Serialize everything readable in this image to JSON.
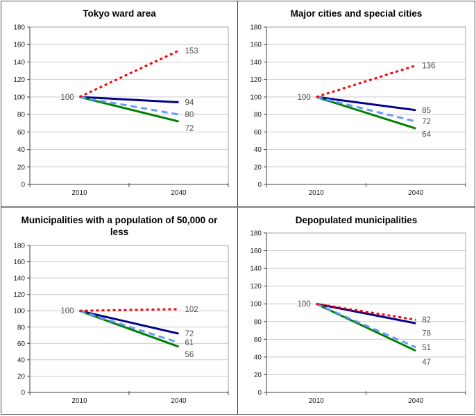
{
  "board_name": "population-index-charts",
  "axis": {
    "ylim": [
      0,
      180
    ],
    "ytick_step": 20,
    "x_categories": [
      "2010",
      "2040"
    ]
  },
  "colors": {
    "red_dashed": "#FF0000",
    "navy_solid": "#000090",
    "blue_dashed": "#6699FF",
    "green_solid": "#008000",
    "gridline": "#CBCBCB",
    "plot_border": "#A3A3A3",
    "axis_line": "#404040",
    "tick_label": "#1a1a1a",
    "data_label": "#4f4f4f"
  },
  "chart_data": [
    {
      "type": "line",
      "title": "Tokyo ward area",
      "x": [
        "2010",
        "2040"
      ],
      "ylim": [
        0,
        180
      ],
      "ytick_step": 20,
      "grid": true,
      "legend": "none",
      "start_label": "100",
      "series": [
        {
          "name": "red-short-dashed",
          "color": "#FF0000",
          "line_style": "short-dash",
          "values": [
            100,
            153
          ],
          "end_label": "153"
        },
        {
          "name": "navy-solid",
          "color": "#000090",
          "line_style": "solid",
          "values": [
            100,
            94
          ],
          "end_label": "94"
        },
        {
          "name": "light-blue-dashed",
          "color": "#6699FF",
          "line_style": "long-dash",
          "values": [
            100,
            80
          ],
          "end_label": "80"
        },
        {
          "name": "green-solid",
          "color": "#008000",
          "line_style": "solid",
          "values": [
            100,
            72
          ],
          "end_label": "72"
        }
      ],
      "label_dy": [
        0,
        0,
        0,
        10
      ]
    },
    {
      "type": "line",
      "title": "Major cities and special cities",
      "x": [
        "2010",
        "2040"
      ],
      "ylim": [
        0,
        180
      ],
      "ytick_step": 20,
      "grid": true,
      "legend": "none",
      "start_label": "100",
      "series": [
        {
          "name": "red-short-dashed",
          "color": "#FF0000",
          "line_style": "short-dash",
          "values": [
            100,
            136
          ],
          "end_label": "136"
        },
        {
          "name": "navy-solid",
          "color": "#000090",
          "line_style": "solid",
          "values": [
            100,
            85
          ],
          "end_label": "85"
        },
        {
          "name": "light-blue-dashed",
          "color": "#6699FF",
          "line_style": "long-dash",
          "values": [
            100,
            72
          ],
          "end_label": "72"
        },
        {
          "name": "green-solid",
          "color": "#008000",
          "line_style": "solid",
          "values": [
            100,
            64
          ],
          "end_label": "64"
        }
      ],
      "label_dy": [
        0,
        0,
        0,
        8
      ]
    },
    {
      "type": "line",
      "title": "Municipalities with a population of 50,000 or less",
      "x": [
        "2010",
        "2040"
      ],
      "ylim": [
        0,
        180
      ],
      "ytick_step": 20,
      "grid": true,
      "legend": "none",
      "start_label": "100",
      "series": [
        {
          "name": "red-short-dashed",
          "color": "#FF0000",
          "line_style": "short-dash",
          "values": [
            100,
            102
          ],
          "end_label": "102"
        },
        {
          "name": "navy-solid",
          "color": "#000090",
          "line_style": "solid",
          "values": [
            100,
            72
          ],
          "end_label": "72"
        },
        {
          "name": "light-blue-dashed",
          "color": "#6699FF",
          "line_style": "long-dash",
          "values": [
            100,
            61
          ],
          "end_label": "61"
        },
        {
          "name": "green-solid",
          "color": "#008000",
          "line_style": "solid",
          "values": [
            100,
            56
          ],
          "end_label": "56"
        }
      ],
      "label_dy": [
        0,
        0,
        0,
        11
      ]
    },
    {
      "type": "line",
      "title": "Depopulated municipalities",
      "x": [
        "2010",
        "2040"
      ],
      "ylim": [
        0,
        180
      ],
      "ytick_step": 20,
      "grid": true,
      "legend": "none",
      "start_label": "100",
      "series": [
        {
          "name": "red-short-dashed",
          "color": "#FF0000",
          "line_style": "short-dash",
          "values": [
            100,
            82
          ],
          "end_label": "82"
        },
        {
          "name": "navy-solid",
          "color": "#000090",
          "line_style": "solid",
          "values": [
            100,
            78
          ],
          "end_label": "78"
        },
        {
          "name": "light-blue-dashed",
          "color": "#6699FF",
          "line_style": "long-dash",
          "values": [
            100,
            51
          ],
          "end_label": "51"
        },
        {
          "name": "green-solid",
          "color": "#008000",
          "line_style": "solid",
          "values": [
            100,
            47
          ],
          "end_label": "47"
        }
      ],
      "label_dy": [
        0,
        14,
        0,
        16
      ]
    }
  ]
}
